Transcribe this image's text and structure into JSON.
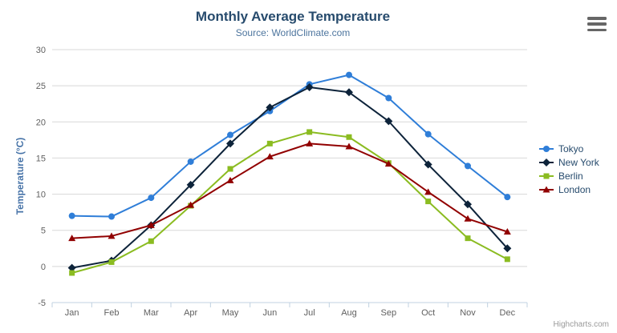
{
  "header": {
    "title": "Monthly Average Temperature",
    "subtitle": "Source: WorldClimate.com"
  },
  "icons": {
    "context_menu": "hamburger-icon"
  },
  "credit": "Highcharts.com",
  "colors": {
    "title": "#274b6d",
    "subtitle": "#4d759e",
    "axis_title": "#4572a7",
    "axis_labels": "#606060",
    "gridline": "#d8d8d8",
    "axis_line": "#c0d0e0",
    "menu_icon": "#666666",
    "credit": "#999999"
  },
  "chart_data": {
    "type": "line",
    "title": "Monthly Average Temperature",
    "subtitle": "Source: WorldClimate.com",
    "categories": [
      "Jan",
      "Feb",
      "Mar",
      "Apr",
      "May",
      "Jun",
      "Jul",
      "Aug",
      "Sep",
      "Oct",
      "Nov",
      "Dec"
    ],
    "series": [
      {
        "name": "Tokyo",
        "color": "#2f7ed8",
        "marker": "circle",
        "values": [
          7.0,
          6.9,
          9.5,
          14.5,
          18.2,
          21.5,
          25.2,
          26.5,
          23.3,
          18.3,
          13.9,
          9.6
        ]
      },
      {
        "name": "New York",
        "color": "#0d233a",
        "marker": "diamond",
        "values": [
          -0.2,
          0.8,
          5.7,
          11.3,
          17.0,
          22.0,
          24.8,
          24.1,
          20.1,
          14.1,
          8.6,
          2.5
        ]
      },
      {
        "name": "Berlin",
        "color": "#8bbc21",
        "marker": "square",
        "values": [
          -0.9,
          0.6,
          3.5,
          8.4,
          13.5,
          17.0,
          18.6,
          17.9,
          14.3,
          9.0,
          3.9,
          1.0
        ]
      },
      {
        "name": "London",
        "color": "#910000",
        "marker": "triangle",
        "values": [
          3.9,
          4.2,
          5.7,
          8.5,
          11.9,
          15.2,
          17.0,
          16.6,
          14.2,
          10.3,
          6.6,
          4.8
        ]
      }
    ],
    "xlabel": "",
    "ylabel": "Temperature (°C)",
    "ylim": [
      -5,
      30
    ],
    "ytick_interval": 5,
    "yticks": [
      30,
      25,
      20,
      15,
      10,
      5,
      0,
      -5
    ],
    "grid": true,
    "legend_position": "right"
  }
}
